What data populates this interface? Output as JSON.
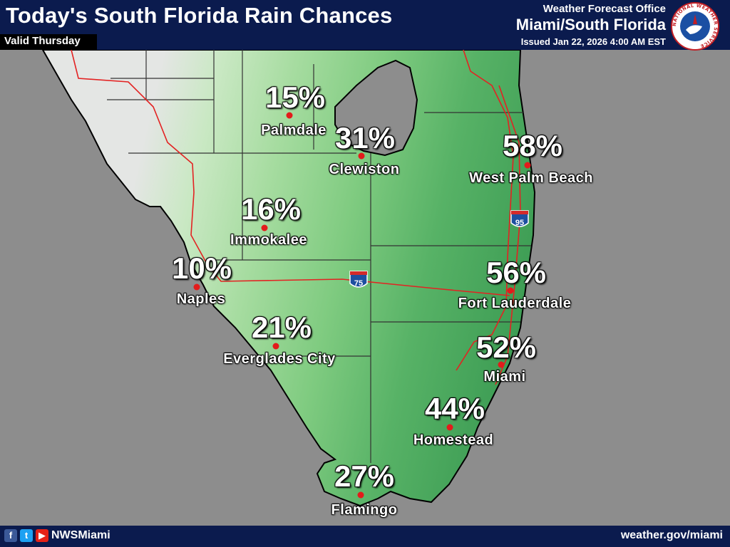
{
  "header": {
    "title": "Today's South Florida Rain Chances",
    "valid": "Valid Thursday",
    "office_label": "Weather Forecast Office",
    "office_name": "Miami/South Florida",
    "issued": "Issued Jan 22, 2026 4:00 AM EST",
    "logo_text": "NATIONAL WEATHER SERVICE"
  },
  "footer": {
    "social_icons": [
      "facebook-icon",
      "twitter-icon",
      "youtube-icon"
    ],
    "handle": "NWSMiami",
    "url": "weather.gov/miami"
  },
  "highways": [
    {
      "label": "75",
      "name": "interstate-75-shield"
    },
    {
      "label": "95",
      "name": "interstate-95-shield"
    }
  ],
  "cities": [
    {
      "name": "Palmdale",
      "chance": "15%"
    },
    {
      "name": "Clewiston",
      "chance": "31%"
    },
    {
      "name": "West Palm Beach",
      "chance": "58%"
    },
    {
      "name": "Immokalee",
      "chance": "16%"
    },
    {
      "name": "Naples",
      "chance": "10%"
    },
    {
      "name": "Fort Lauderdale",
      "chance": "56%"
    },
    {
      "name": "Everglades City",
      "chance": "21%"
    },
    {
      "name": "Miami",
      "chance": "52%"
    },
    {
      "name": "Homestead",
      "chance": "44%"
    },
    {
      "name": "Flamingo",
      "chance": "27%"
    }
  ],
  "colors": {
    "header_bg": "#0b1b4e",
    "water": "#8d8d8d",
    "land_low": "#e4e6e4",
    "green_light": "#b7e2b0",
    "green_mid": "#7fcb80",
    "green_dark": "#3a9a52",
    "roads": "#e32222",
    "city_dot": "#e31b1b"
  }
}
